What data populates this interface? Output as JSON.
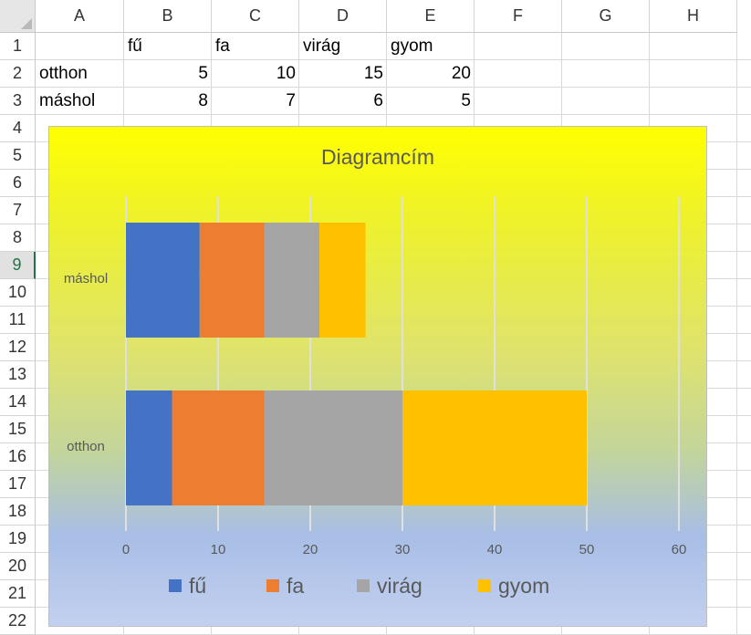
{
  "columns": [
    "A",
    "B",
    "C",
    "D",
    "E",
    "F",
    "G",
    "H"
  ],
  "rows": [
    "1",
    "2",
    "3",
    "4",
    "5",
    "6",
    "7",
    "8",
    "9",
    "10",
    "11",
    "12",
    "13",
    "14",
    "15",
    "16",
    "17",
    "18",
    "19",
    "20",
    "21",
    "22"
  ],
  "selected_row": "9",
  "cells": {
    "b1": "fű",
    "c1": "fa",
    "d1": "virág",
    "e1": "gyom",
    "a2": "otthon",
    "b2": "5",
    "c2": "10",
    "d2": "15",
    "e2": "20",
    "a3": "máshol",
    "b3": "8",
    "c3": "7",
    "d3": "6",
    "e3": "5"
  },
  "chart_data": {
    "type": "bar",
    "orientation": "horizontal",
    "stacked": true,
    "title": "Diagramcím",
    "categories": [
      "otthon",
      "máshol"
    ],
    "series": [
      {
        "name": "fű",
        "values": [
          5,
          8
        ],
        "color": "#4472c4"
      },
      {
        "name": "fa",
        "values": [
          10,
          7
        ],
        "color": "#ed7d31"
      },
      {
        "name": "virág",
        "values": [
          15,
          6
        ],
        "color": "#a5a5a5"
      },
      {
        "name": "gyom",
        "values": [
          20,
          5
        ],
        "color": "#ffc000"
      }
    ],
    "xlim": [
      0,
      60
    ],
    "xticks": [
      "0",
      "10",
      "20",
      "30",
      "40",
      "50",
      "60"
    ],
    "grid": true,
    "legend_position": "bottom"
  }
}
